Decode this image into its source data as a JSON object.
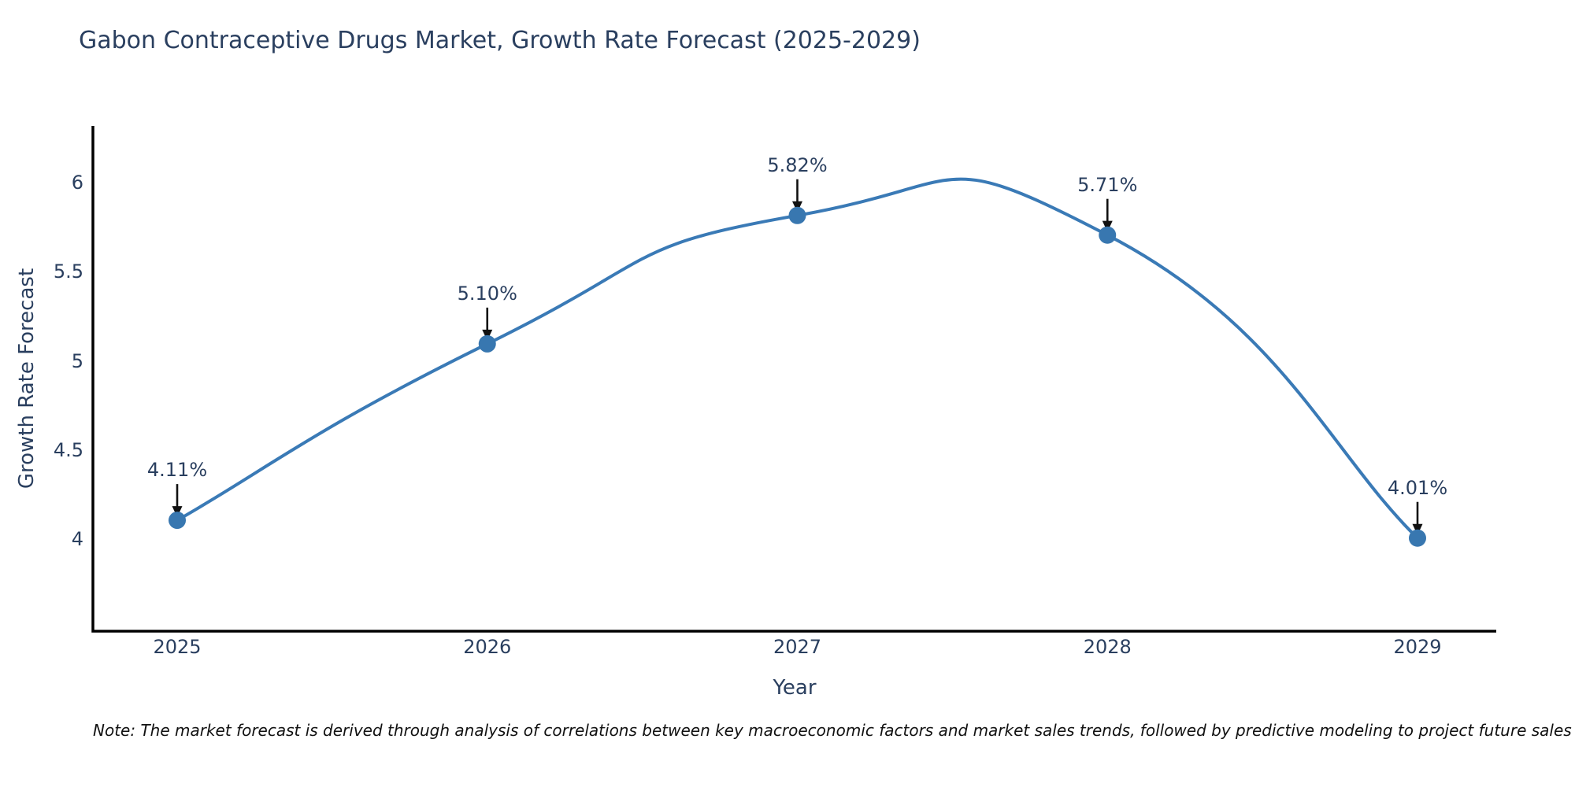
{
  "note": "Note: The market forecast is derived through analysis of correlations between key macroeconomic factors and market sales trends, followed by predictive modeling to project future sales",
  "chart_data": {
    "type": "line",
    "title": "Gabon Contraceptive Drugs Market, Growth Rate Forecast (2025-2029)",
    "x": [
      "2025",
      "2026",
      "2027",
      "2028",
      "2029"
    ],
    "y": [
      4.11,
      5.1,
      5.82,
      5.71,
      4.01
    ],
    "point_labels": [
      "4.11%",
      "5.10%",
      "5.82%",
      "5.71%",
      "4.01%"
    ],
    "xlabel": "Year",
    "ylabel": "Growth Rate Forecast",
    "yticks": [
      4,
      4.5,
      5,
      5.5,
      6
    ],
    "ytick_labels": [
      "4",
      "4.5",
      "5",
      "5.5",
      "6"
    ],
    "ylim": [
      3.49,
      6.32
    ],
    "line_shape": "spline",
    "grid": false,
    "legend": "none",
    "annotation_style": "value labels with black down-arrows pointing at markers",
    "colors": {
      "line": "#3a7ab6",
      "marker": "#3877b0",
      "axis": "#000000",
      "title_text": "#2a3f5f",
      "tick_text": "#2a3f5f",
      "annotation_text": "#2a3f5f",
      "arrow": "#111111",
      "note_text": "#111111",
      "background": "#ffffff"
    }
  }
}
